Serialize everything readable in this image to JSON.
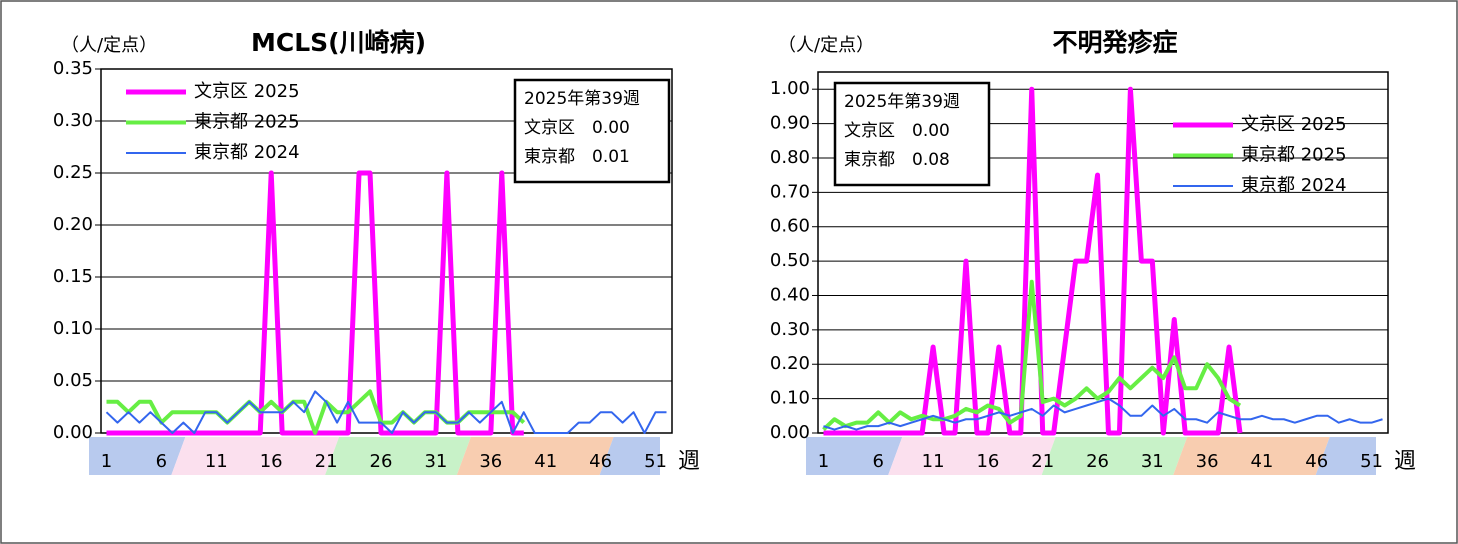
{
  "chart_data": [
    {
      "type": "line",
      "title": "MCLS(川崎病)",
      "ylabel": "（人/定点）",
      "xlabel": "週",
      "categories": [
        "1",
        null,
        null,
        null,
        null,
        "6",
        null,
        null,
        null,
        null,
        "11",
        null,
        null,
        null,
        null,
        "16",
        null,
        null,
        null,
        null,
        "21",
        null,
        null,
        null,
        null,
        "26",
        null,
        null,
        null,
        null,
        "31",
        null,
        null,
        null,
        null,
        "36",
        null,
        null,
        null,
        null,
        "41",
        null,
        null,
        null,
        null,
        "46",
        null,
        null,
        null,
        null,
        "51",
        null
      ],
      "ylim": [
        0,
        0.35
      ],
      "yticks": [
        {
          "value": 0,
          "label": "0.00"
        },
        {
          "value": 0.05,
          "label": "0.05"
        },
        {
          "value": 0.1,
          "label": "0.10"
        },
        {
          "value": 0.15,
          "label": "0.15"
        },
        {
          "value": 0.2,
          "label": "0.20"
        },
        {
          "value": 0.25,
          "label": "0.25"
        },
        {
          "value": 0.3,
          "label": "0.30"
        },
        {
          "value": 0.35,
          "label": "0.35"
        }
      ],
      "grid": true,
      "legend": "upper left",
      "note_position": "upper right",
      "note": [
        "2025年第39週",
        "文京区　0.00",
        "東京都　0.01"
      ],
      "series": [
        {
          "name": "文京区 2025",
          "color": "#ff00ff",
          "values": [
            0,
            0,
            0,
            0,
            0,
            0,
            0,
            0,
            0,
            0,
            0,
            0,
            0,
            0,
            0,
            0.25,
            0,
            0,
            0,
            0,
            0,
            0,
            0,
            0.25,
            0.25,
            0,
            0,
            0,
            0,
            0,
            0,
            0.25,
            0,
            0,
            0,
            0,
            0.25,
            0,
            0,
            null,
            null,
            null,
            null,
            null,
            null,
            null,
            null,
            null,
            null,
            null,
            null,
            null
          ]
        },
        {
          "name": "東京都 2025",
          "color": "#66ee44",
          "values": [
            0.03,
            0.03,
            0.02,
            0.03,
            0.03,
            0.01,
            0.02,
            0.02,
            0.02,
            0.02,
            0.02,
            0.01,
            0.02,
            0.03,
            0.02,
            0.03,
            0.02,
            0.03,
            0.03,
            0,
            0.03,
            0.02,
            0.02,
            0.03,
            0.04,
            0.01,
            0.01,
            0.02,
            0.01,
            0.02,
            0.02,
            0.01,
            0.01,
            0.02,
            0.02,
            0.02,
            0.02,
            0.02,
            0.01,
            null,
            null,
            null,
            null,
            null,
            null,
            null,
            null,
            null,
            null,
            null,
            null,
            null
          ]
        },
        {
          "name": "東京都 2024",
          "color": "#3366ee",
          "values": [
            0.02,
            0.01,
            0.02,
            0.01,
            0.02,
            0.01,
            0,
            0.01,
            0,
            0.02,
            0.02,
            0.01,
            0.02,
            0.03,
            0.02,
            0.02,
            0.02,
            0.03,
            0.02,
            0.04,
            0.03,
            0.01,
            0.03,
            0.01,
            0.01,
            0.01,
            0,
            0.02,
            0.01,
            0.02,
            0.02,
            0.01,
            0.01,
            0.02,
            0.01,
            0.02,
            0.03,
            0,
            0.02,
            0,
            0,
            0,
            0,
            0.01,
            0.01,
            0.02,
            0.02,
            0.01,
            0.02,
            0,
            0.02,
            0.02
          ]
        }
      ]
    },
    {
      "type": "line",
      "title": "不明発疹症",
      "ylabel": "（人/定点）",
      "xlabel": "週",
      "categories": [
        "1",
        null,
        null,
        null,
        null,
        "6",
        null,
        null,
        null,
        null,
        "11",
        null,
        null,
        null,
        null,
        "16",
        null,
        null,
        null,
        null,
        "21",
        null,
        null,
        null,
        null,
        "26",
        null,
        null,
        null,
        null,
        "31",
        null,
        null,
        null,
        null,
        "36",
        null,
        null,
        null,
        null,
        "41",
        null,
        null,
        null,
        null,
        "46",
        null,
        null,
        null,
        null,
        "51",
        null
      ],
      "ylim": [
        0,
        1.05
      ],
      "yticks": [
        {
          "value": 0,
          "label": "0.00"
        },
        {
          "value": 0.1,
          "label": "0.10"
        },
        {
          "value": 0.2,
          "label": "0.20"
        },
        {
          "value": 0.3,
          "label": "0.30"
        },
        {
          "value": 0.4,
          "label": "0.40"
        },
        {
          "value": 0.5,
          "label": "0.50"
        },
        {
          "value": 0.6,
          "label": "0.60"
        },
        {
          "value": 0.7,
          "label": "0.70"
        },
        {
          "value": 0.8,
          "label": "0.80"
        },
        {
          "value": 0.9,
          "label": "0.90"
        },
        {
          "value": 1,
          "label": "1.00"
        }
      ],
      "grid": true,
      "legend": "upper right",
      "note_position": "upper left",
      "note": [
        "2025年第39週",
        "文京区　0.00",
        "東京都　0.08"
      ],
      "series": [
        {
          "name": "文京区 2025",
          "color": "#ff00ff",
          "values": [
            0,
            0,
            0,
            0,
            0,
            0,
            0,
            0,
            0,
            0,
            0.25,
            0,
            0,
            0.5,
            0,
            0,
            0.25,
            0,
            0,
            1,
            0,
            0,
            0.25,
            0.5,
            0.5,
            0.75,
            0,
            0,
            1,
            0.5,
            0.5,
            0,
            0.33,
            0,
            0,
            0,
            0,
            0.25,
            0,
            null,
            null,
            null,
            null,
            null,
            null,
            null,
            null,
            null,
            null,
            null,
            null,
            null
          ]
        },
        {
          "name": "東京都 2025",
          "color": "#66ee44",
          "values": [
            0.01,
            0.04,
            0.02,
            0.03,
            0.03,
            0.06,
            0.03,
            0.06,
            0.04,
            0.05,
            0.04,
            0.04,
            0.05,
            0.07,
            0.06,
            0.08,
            0.07,
            0.03,
            0.05,
            0.44,
            0.09,
            0.1,
            0.08,
            0.1,
            0.13,
            0.1,
            0.12,
            0.16,
            0.13,
            0.16,
            0.19,
            0.16,
            0.22,
            0.13,
            0.13,
            0.2,
            0.16,
            0.1,
            0.08,
            null,
            null,
            null,
            null,
            null,
            null,
            null,
            null,
            null,
            null,
            null,
            null,
            null
          ]
        },
        {
          "name": "東京都 2024",
          "color": "#3366ee",
          "values": [
            0.02,
            0.01,
            0.02,
            0.01,
            0.02,
            0.02,
            0.03,
            0.02,
            0.03,
            0.04,
            0.05,
            0.04,
            0.03,
            0.04,
            0.04,
            0.05,
            0.06,
            0.05,
            0.06,
            0.07,
            0.05,
            0.08,
            0.06,
            0.07,
            0.08,
            0.09,
            0.1,
            0.08,
            0.05,
            0.05,
            0.08,
            0.05,
            0.07,
            0.04,
            0.04,
            0.03,
            0.06,
            0.05,
            0.04,
            0.04,
            0.05,
            0.04,
            0.04,
            0.03,
            0.04,
            0.05,
            0.05,
            0.03,
            0.04,
            0.03,
            0.03,
            0.04
          ]
        }
      ]
    }
  ]
}
